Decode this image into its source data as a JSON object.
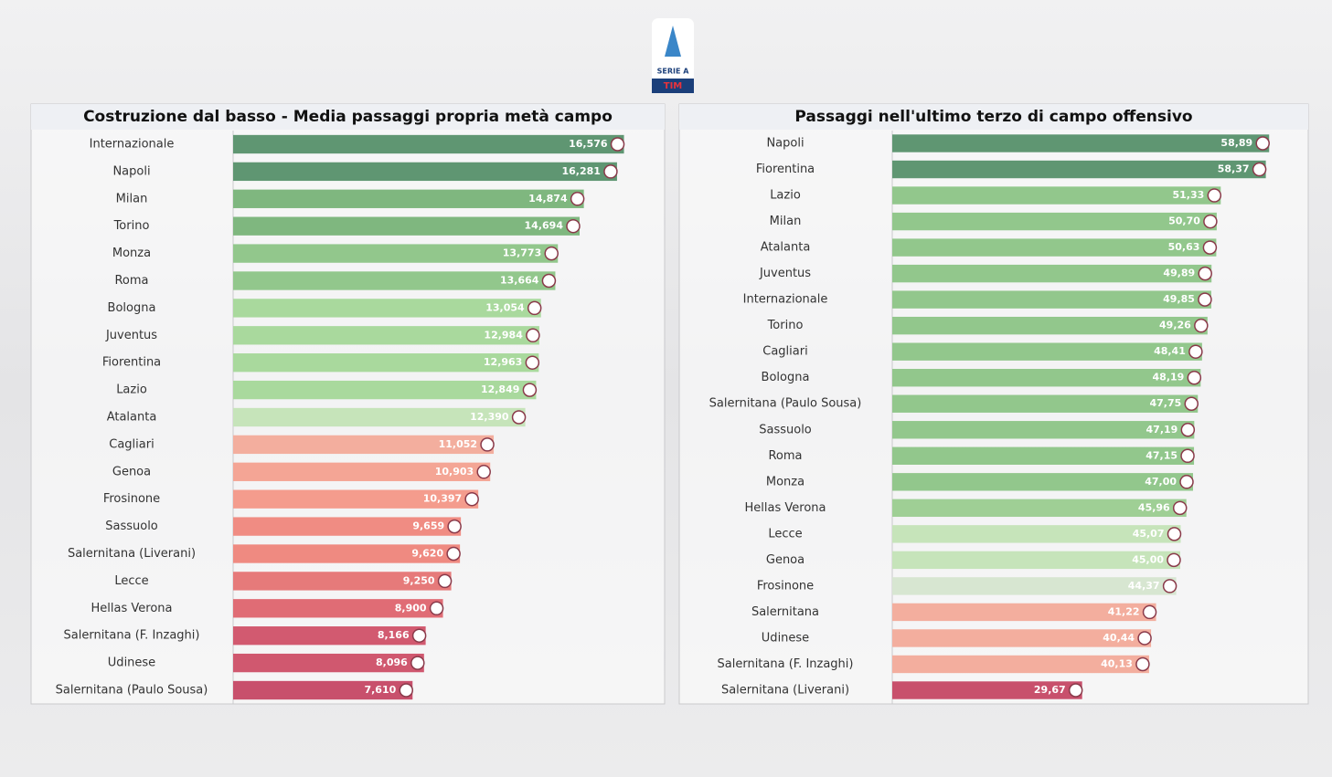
{
  "header": {
    "logo_text": "SERIE A",
    "logo_sponsor": "TIM"
  },
  "chart_data": [
    {
      "type": "bar",
      "orientation": "horizontal",
      "title": "Costruzione dal basso - Media passaggi propria metà campo",
      "categories": [
        "Internazionale",
        "Napoli",
        "Milan",
        "Torino",
        "Monza",
        "Roma",
        "Bologna",
        "Juventus",
        "Fiorentina",
        "Lazio",
        "Atalanta",
        "Cagliari",
        "Genoa",
        "Frosinone",
        "Sassuolo",
        "Salernitana (Liverani)",
        "Lecce",
        "Hellas Verona",
        "Salernitana (F. Inzaghi)",
        "Udinese",
        "Salernitana (Paulo Sousa)"
      ],
      "values": [
        16.576,
        16.281,
        14.874,
        14.694,
        13.773,
        13.664,
        13.054,
        12.984,
        12.963,
        12.849,
        12.39,
        11.052,
        10.903,
        10.397,
        9.659,
        9.62,
        9.25,
        8.9,
        8.166,
        8.096,
        7.61
      ],
      "value_labels": [
        "16,576",
        "16,281",
        "14,874",
        "14,694",
        "13,773",
        "13,664",
        "13,054",
        "12,984",
        "12,963",
        "12,849",
        "12,390",
        "11,052",
        "10,903",
        "10,397",
        "9,659",
        "9,620",
        "9,250",
        "8,900",
        "8,166",
        "8,096",
        "7,610"
      ],
      "colors": [
        "#5f9672",
        "#5f9672",
        "#7fb77f",
        "#7fb77f",
        "#92c78c",
        "#92c78c",
        "#a9d99d",
        "#a9d99d",
        "#a9d99d",
        "#a9d99d",
        "#c6e4ba",
        "#f3ae9e",
        "#f4a595",
        "#f49c8d",
        "#f08c83",
        "#ef8a81",
        "#e67a7a",
        "#e06c75",
        "#d25a70",
        "#d0586f",
        "#c8506c"
      ],
      "xlim": [
        0,
        18.3
      ]
    },
    {
      "type": "bar",
      "orientation": "horizontal",
      "title": "Passaggi nell'ultimo terzo di campo offensivo",
      "categories": [
        "Napoli",
        "Fiorentina",
        "Lazio",
        "Milan",
        "Atalanta",
        "Juventus",
        "Internazionale",
        "Torino",
        "Cagliari",
        "Bologna",
        "Salernitana (Paulo Sousa)",
        "Sassuolo",
        "Roma",
        "Monza",
        "Hellas Verona",
        "Lecce",
        "Genoa",
        "Frosinone",
        "Salernitana",
        "Udinese",
        "Salernitana (F. Inzaghi)",
        "Salernitana (Liverani)"
      ],
      "values": [
        58.89,
        58.37,
        51.33,
        50.7,
        50.63,
        49.89,
        49.85,
        49.26,
        48.41,
        48.19,
        47.75,
        47.19,
        47.15,
        47,
        45.96,
        45.07,
        45,
        44.37,
        41.22,
        40.44,
        40.13,
        29.67
      ],
      "value_labels": [
        "58,89",
        "58,37",
        "51,33",
        "50,70",
        "50,63",
        "49,89",
        "49,85",
        "49,26",
        "48,41",
        "48,19",
        "47,75",
        "47,19",
        "47,15",
        "47,00",
        "45,96",
        "45,07",
        "45,00",
        "44,37",
        "41,22",
        "40,44",
        "40,13",
        "29,67"
      ],
      "colors": [
        "#5f9672",
        "#5f9672",
        "#92c78c",
        "#92c78c",
        "#92c78c",
        "#92c78c",
        "#92c78c",
        "#92c78c",
        "#92c78c",
        "#92c78c",
        "#92c78c",
        "#92c78c",
        "#92c78c",
        "#92c78c",
        "#9fcf95",
        "#c6e4ba",
        "#c6e4ba",
        "#d7e6d1",
        "#f3ae9e",
        "#f3ae9e",
        "#f3ae9e",
        "#c8506c"
      ],
      "xlim": [
        0,
        65
      ]
    }
  ]
}
